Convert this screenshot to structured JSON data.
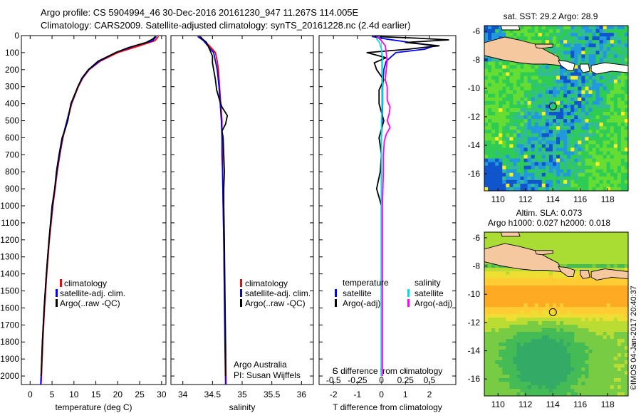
{
  "title": {
    "line1": "Argo profile: CS 5904994_46 30-Dec-2016 20161230_947 11.267S 114.005E",
    "line2": "Climatology: CARS2009. Satellite-adjusted climatology: synTS_20161228.nc (2.4d earlier)"
  },
  "colors": {
    "climatology": "#ff0000",
    "satellite": "#0000ff",
    "argo": "#000000",
    "argo_salinity_adj": "#ff00ff",
    "satellite_salinity": "#00e0e0",
    "land": "#f5c8a0"
  },
  "chart_data": [
    {
      "id": "temperature",
      "type": "line",
      "xlabel": "temperature (deg C)",
      "ylabel": "",
      "xlim": [
        -2,
        31
      ],
      "ylim": [
        2050,
        0
      ],
      "xticks": [
        0,
        5,
        10,
        15,
        20,
        25,
        30
      ],
      "yticks": [
        0,
        100,
        200,
        300,
        400,
        500,
        600,
        700,
        800,
        900,
        1000,
        1100,
        1200,
        1300,
        1400,
        1500,
        1600,
        1700,
        1800,
        1900,
        2000
      ],
      "legend": [
        "climatology",
        "satellite-adj. clim.",
        "Argo(..raw -QC)"
      ],
      "series": [
        {
          "name": "climatology",
          "color": "#ff0000",
          "depth": [
            5,
            30,
            60,
            100,
            150,
            200,
            250,
            300,
            400,
            500,
            600,
            700,
            800,
            900,
            1000,
            1200,
            1400,
            1600,
            1800,
            2000,
            2050
          ],
          "values": [
            29.3,
            28.5,
            25,
            20,
            16,
            13.5,
            12,
            11,
            9.5,
            8.5,
            7.5,
            6.8,
            6.2,
            5.7,
            5.2,
            4.4,
            3.8,
            3.3,
            2.9,
            2.6,
            2.5
          ]
        },
        {
          "name": "satellite-adj. clim.",
          "color": "#0000ff",
          "depth": [
            5,
            30,
            60,
            100,
            150,
            200,
            250,
            300,
            400,
            500,
            600,
            700,
            800,
            900,
            1000,
            1200,
            1400,
            1600,
            1800,
            2000,
            2050
          ],
          "values": [
            28.8,
            28.0,
            24,
            19.5,
            15.8,
            13.4,
            11.9,
            10.9,
            9.4,
            8.4,
            7.4,
            6.7,
            6.1,
            5.6,
            5.1,
            4.3,
            3.7,
            3.2,
            2.8,
            2.5,
            2.4
          ]
        },
        {
          "name": "Argo(..raw -QC)",
          "color": "#000000",
          "depth": [
            5,
            20,
            40,
            70,
            100,
            150,
            200,
            250,
            300,
            400,
            500,
            550,
            600,
            700,
            800,
            900,
            1000,
            1200,
            1400,
            1600,
            1800,
            2000
          ],
          "values": [
            28.6,
            28.0,
            26.5,
            22.5,
            19.5,
            15.5,
            13.3,
            11.8,
            10.9,
            9.3,
            8.6,
            8.0,
            7.3,
            6.6,
            6.0,
            5.6,
            5.0,
            4.3,
            3.7,
            3.2,
            2.8,
            2.5
          ]
        }
      ]
    },
    {
      "id": "salinity",
      "type": "line",
      "xlabel": "salinity",
      "ylabel": "",
      "xlim": [
        33.8,
        36.2
      ],
      "ylim": [
        2050,
        0
      ],
      "xticks": [
        34,
        34.5,
        35,
        35.5,
        36
      ],
      "legend": [
        "climatology",
        "satellite-adj. clim.",
        "Argo(..raw -QC)"
      ],
      "annotations": [
        "Argo Australia",
        "PI: Susan Wijffels"
      ],
      "series": [
        {
          "name": "climatology",
          "color": "#ff0000",
          "depth": [
            5,
            30,
            60,
            100,
            150,
            200,
            300,
            400,
            500,
            600,
            700,
            800,
            1000,
            1200,
            1500,
            1800,
            2050
          ],
          "values": [
            34.3,
            34.35,
            34.45,
            34.55,
            34.58,
            34.6,
            34.62,
            34.64,
            34.66,
            34.66,
            34.67,
            34.67,
            34.68,
            34.69,
            34.7,
            34.72,
            34.73
          ]
        },
        {
          "name": "satellite-adj. clim.",
          "color": "#0000ff",
          "depth": [
            5,
            30,
            60,
            100,
            150,
            200,
            300,
            400,
            500,
            600,
            700,
            800,
            1000,
            1200,
            1500,
            1800,
            2050
          ],
          "values": [
            34.25,
            34.35,
            34.42,
            34.52,
            34.55,
            34.58,
            34.61,
            34.63,
            34.65,
            34.66,
            34.66,
            34.67,
            34.68,
            34.69,
            34.7,
            34.71,
            34.72
          ]
        },
        {
          "name": "Argo(..raw -QC)",
          "color": "#000000",
          "depth": [
            5,
            40,
            80,
            120,
            160,
            200,
            260,
            320,
            380,
            420,
            470,
            520,
            560,
            600,
            700,
            800,
            900,
            1000,
            1200,
            1500,
            1800,
            2000
          ],
          "values": [
            34.28,
            34.4,
            34.45,
            34.5,
            34.5,
            34.52,
            34.55,
            34.57,
            34.62,
            34.66,
            34.75,
            34.72,
            34.66,
            34.68,
            34.69,
            34.7,
            34.69,
            34.69,
            34.7,
            34.71,
            34.72,
            34.72
          ]
        }
      ]
    },
    {
      "id": "difference",
      "type": "line",
      "xlabel": "T difference from climatology",
      "x2label": "S difference from climatology",
      "xlim": [
        -2.6,
        3.1
      ],
      "ylim": [
        2050,
        0
      ],
      "xticks": [
        -2,
        -1,
        0,
        1,
        2
      ],
      "x2ticks": [
        -0.5,
        -0.25,
        0,
        0.25,
        0.5
      ],
      "legend": [
        "temperature",
        "satellite",
        "Argo(-adj)",
        "salinity",
        "satellite",
        "Argo(-adj)"
      ],
      "series": [
        {
          "name": "T satellite",
          "color": "#0000ff",
          "depth": [
            5,
            20,
            40,
            60,
            80,
            100,
            150,
            200,
            300,
            400,
            600,
            800,
            1000,
            1500,
            2000
          ],
          "values": [
            -0.4,
            0.2,
            1.2,
            2.2,
            1.8,
            0.6,
            0.2,
            0.1,
            0.05,
            0.05,
            0.0,
            0.0,
            0.0,
            0.0,
            0.0
          ]
        },
        {
          "name": "T Argo(-adj)",
          "color": "#000000",
          "depth": [
            5,
            15,
            25,
            40,
            60,
            80,
            100,
            130,
            160,
            200,
            260,
            320,
            400,
            500,
            600,
            700,
            800,
            900,
            1000,
            1200,
            1500,
            2000
          ],
          "values": [
            -0.3,
            1.5,
            2.8,
            1.0,
            2.4,
            1.1,
            -0.6,
            0.2,
            -0.3,
            -0.2,
            0.1,
            -0.1,
            -0.1,
            0.1,
            -0.1,
            0.0,
            -0.05,
            -0.2,
            0.0,
            0.0,
            0.0,
            0.0
          ]
        },
        {
          "name": "S satellite",
          "color": "#00e0e0",
          "depth": [
            5,
            20,
            40,
            80,
            120,
            200,
            300,
            400,
            500,
            600,
            800,
            1000,
            1500,
            2000
          ],
          "values": [
            -0.02,
            -0.05,
            -0.02,
            0.0,
            0.01,
            0.01,
            0.01,
            0.01,
            0.0,
            0.0,
            0.0,
            0.0,
            0.0,
            0.0
          ]
        },
        {
          "name": "S Argo(-adj)",
          "color": "#ff00ff",
          "depth": [
            5,
            30,
            60,
            100,
            150,
            200,
            260,
            300,
            380,
            420,
            460,
            500,
            540,
            580,
            620,
            700,
            800,
            1000,
            1500,
            2000
          ],
          "values": [
            -0.05,
            0.0,
            0.04,
            0.05,
            0.06,
            0.05,
            0.04,
            0.06,
            0.06,
            0.09,
            0.08,
            0.06,
            0.09,
            0.05,
            0.03,
            0.02,
            0.02,
            0.01,
            0.01,
            0.01
          ]
        }
      ]
    },
    {
      "id": "sst-map",
      "type": "heatmap",
      "title": "sat. SST: 29.2 Argo: 28.9",
      "xlim": [
        109,
        119.5
      ],
      "ylim": [
        -17.2,
        -5.6
      ],
      "xticks": [
        110,
        112,
        114,
        116,
        118
      ],
      "yticks": [
        -6,
        -8,
        -10,
        -12,
        -14,
        -16
      ],
      "marker": {
        "lon": 114.005,
        "lat": -11.267
      }
    },
    {
      "id": "sla-map",
      "type": "heatmap",
      "title": "Altim. SLA: 0.073",
      "subtitle": "Argo h1000: 0.027 h2000: 0.018",
      "xlim": [
        109,
        119.5
      ],
      "ylim": [
        -17.2,
        -5.6
      ],
      "xticks": [
        110,
        112,
        114,
        116,
        118
      ],
      "yticks": [
        -6,
        -8,
        -10,
        -12,
        -14,
        -16
      ],
      "marker": {
        "lon": 114.005,
        "lat": -11.267
      }
    }
  ],
  "legend_profiles": {
    "climatology": "climatology",
    "satellite": "satellite-adj. clim.",
    "argo": "Argo(..raw -QC)"
  },
  "legend_diff": {
    "temp_header": "temperature",
    "sal_header": "salinity",
    "satellite": "satellite",
    "argo": "Argo(-adj)"
  },
  "annotation": {
    "line1": "Argo Australia",
    "line2": "PI: Susan Wijffels"
  },
  "side_stamp": "©IMOS 04-Jan-2017 20:40:37"
}
